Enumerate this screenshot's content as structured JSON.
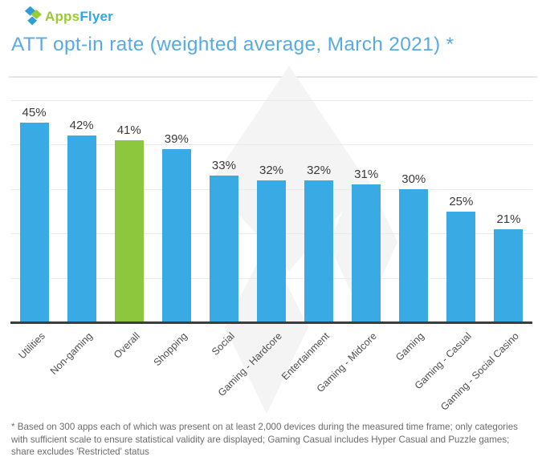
{
  "logo": {
    "text_green": "Apps",
    "text_blue": "Flyer",
    "green_hex": "#99CB33",
    "blue_hex": "#2FA8E1",
    "icon_blue_hex": "#2F9ED9",
    "icon_green_hex": "#99CB33"
  },
  "title": "ATT opt-in rate (weighted average, March 2021) *",
  "chart_data": {
    "type": "bar",
    "title": "ATT opt-in rate (weighted average, March 2021) *",
    "categories": [
      "Utilities",
      "Non-gaming",
      "Overall",
      "Shopping",
      "Social",
      "Gaming - Hardcore",
      "Entertainment",
      "Gaming - Midcore",
      "Gaming",
      "Gaming - Casual",
      "Gaming - Social Casino"
    ],
    "values": [
      45,
      42,
      41,
      39,
      33,
      32,
      32,
      31,
      30,
      25,
      21
    ],
    "value_label_suffix": "%",
    "highlight_index": 2,
    "highlight_category": "Overall",
    "ylim": [
      0,
      50
    ],
    "grid_step": 10,
    "grid_visible": true,
    "legend_position": "none",
    "xlabel": "",
    "ylabel": "",
    "colors": {
      "bar": "#3AAAE4",
      "highlight": "#8DC73E",
      "grid": "#EAEAEA",
      "axis": "#3C3C3C",
      "title": "#58ABE2",
      "value_label": "#3A3A3A",
      "category_label": "#4E4E4E",
      "watermark": "#F4F4F4"
    }
  },
  "footnote": "* Based on 300 apps each of which was present on at least 2,000 devices during the measured time frame; only categories with sufficient scale to ensure statistical validity are displayed; Gaming Casual includes Hyper Casual and Puzzle games; share excludes 'Restricted' status"
}
